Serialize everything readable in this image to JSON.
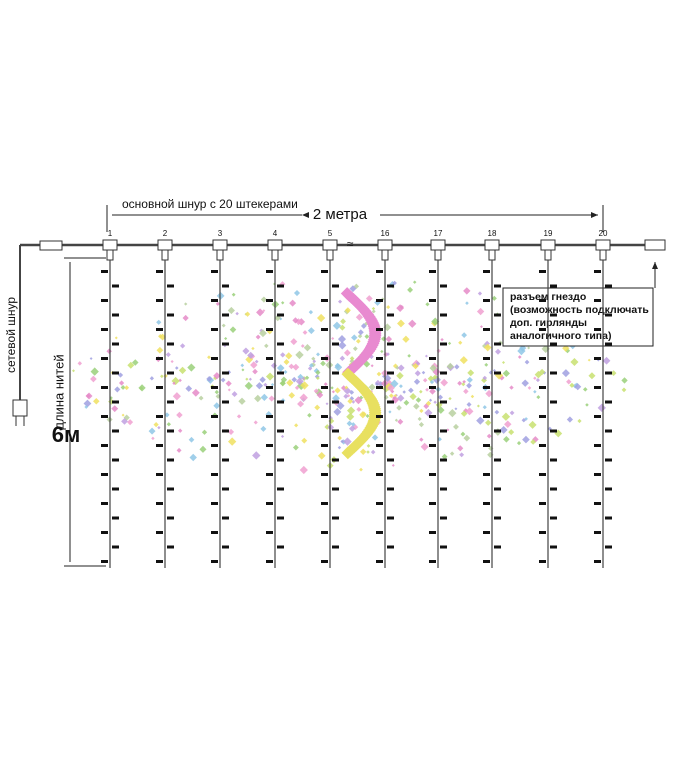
{
  "diagram": {
    "main_cord_label": "основной шнур с 20 штекерами",
    "width_label": "2 метра",
    "power_cord_label": "сетевой шнур",
    "strand_length_label": "длина нитей",
    "strand_length_value": "6м",
    "plugs": [
      "1",
      "2",
      "3",
      "4",
      "5",
      "16",
      "17",
      "18",
      "19",
      "20"
    ],
    "socket_note": [
      "разъем гнездо",
      "(возможность подключать",
      "доп. гирлянды",
      "аналогичного типа)"
    ]
  }
}
